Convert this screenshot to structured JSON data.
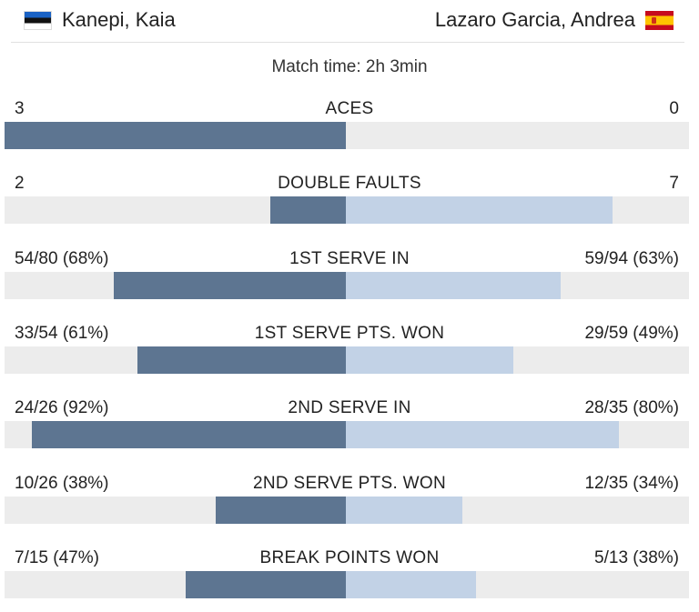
{
  "header": {
    "player1": {
      "name": "Kanepi, Kaia",
      "flag_icon": "estonia-flag-icon"
    },
    "player2": {
      "name": "Lazaro Garcia, Andrea",
      "flag_icon": "spain-flag-icon"
    }
  },
  "match_time": "Match time: 2h 3min",
  "colors": {
    "player1_bar": "#5d7591",
    "player2_bar": "#c2d2e6",
    "track": "#ececec"
  },
  "stats": [
    {
      "name": "ACES",
      "left": "3",
      "right": "0",
      "left_share": 1.0,
      "right_share": 0.0
    },
    {
      "name": "DOUBLE FAULTS",
      "left": "2",
      "right": "7",
      "left_share": 0.22,
      "right_share": 0.78
    },
    {
      "name": "1ST SERVE IN",
      "left": "54/80 (68%)",
      "right": "59/94 (63%)",
      "left_share": 0.68,
      "right_share": 0.63
    },
    {
      "name": "1ST SERVE PTS. WON",
      "left": "33/54 (61%)",
      "right": "29/59 (49%)",
      "left_share": 0.61,
      "right_share": 0.49
    },
    {
      "name": "2ND SERVE IN",
      "left": "24/26 (92%)",
      "right": "28/35 (80%)",
      "left_share": 0.92,
      "right_share": 0.8
    },
    {
      "name": "2ND SERVE PTS. WON",
      "left": "10/26 (38%)",
      "right": "12/35 (34%)",
      "left_share": 0.38,
      "right_share": 0.34
    },
    {
      "name": "BREAK POINTS WON",
      "left": "7/15 (47%)",
      "right": "5/13 (38%)",
      "left_share": 0.47,
      "right_share": 0.38
    }
  ]
}
